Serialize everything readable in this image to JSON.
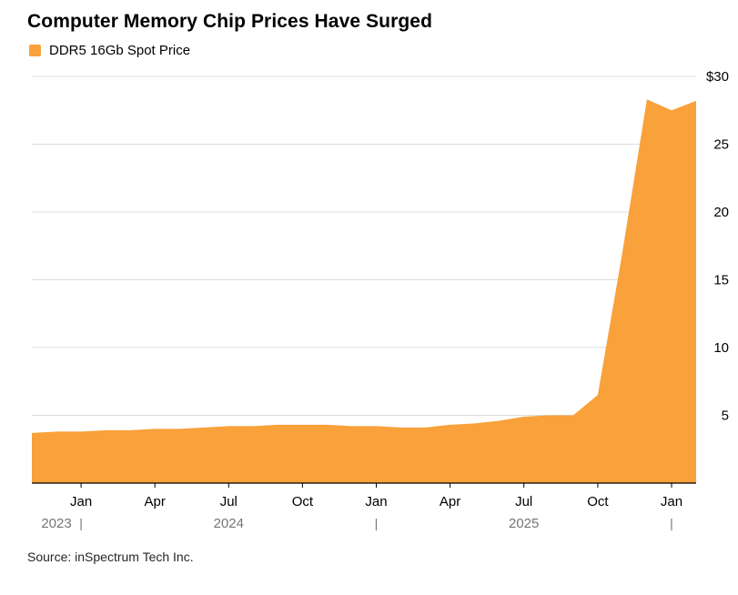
{
  "header": {
    "title": "Computer Memory Chip Prices Have Surged",
    "legend": {
      "label": "DDR5 16Gb Spot Price",
      "swatch_color": "#f9a13a"
    }
  },
  "footer": {
    "source": "Source: inSpectrum Tech Inc."
  },
  "chart_data": {
    "type": "area",
    "title": "Computer Memory Chip Prices Have Surged",
    "series_name": "DDR5 16Gb Spot Price",
    "color": "#f9a13a",
    "grid_color": "#dcdcdc",
    "axis_text_color": "#000000",
    "year_text_color": "#757575",
    "grid": true,
    "legend_position": "top-left",
    "y_axis_side": "right",
    "ylim": [
      0,
      30
    ],
    "y_ticks": [
      5,
      10,
      15,
      20,
      25,
      30
    ],
    "y_tick_labels": [
      "5",
      "10",
      "15",
      "20",
      "25",
      "$30"
    ],
    "x": [
      "2023-11",
      "2023-12",
      "2024-01",
      "2024-02",
      "2024-03",
      "2024-04",
      "2024-05",
      "2024-06",
      "2024-07",
      "2024-08",
      "2024-09",
      "2024-10",
      "2024-11",
      "2024-12",
      "2025-01",
      "2025-02",
      "2025-03",
      "2025-04",
      "2025-05",
      "2025-06",
      "2025-07",
      "2025-08",
      "2025-09",
      "2025-10",
      "2025-11",
      "2025-12",
      "2026-01",
      "2026-02"
    ],
    "values": [
      3.7,
      3.8,
      3.8,
      3.9,
      3.9,
      4.0,
      4.0,
      4.1,
      4.2,
      4.2,
      4.3,
      4.3,
      4.3,
      4.2,
      4.2,
      4.1,
      4.1,
      4.3,
      4.4,
      4.6,
      4.9,
      5.0,
      5.0,
      6.5,
      17.0,
      28.3,
      27.5,
      28.2
    ],
    "x_ticks": [
      {
        "index": 2,
        "label": "Jan"
      },
      {
        "index": 5,
        "label": "Apr"
      },
      {
        "index": 8,
        "label": "Jul"
      },
      {
        "index": 11,
        "label": "Oct"
      },
      {
        "index": 14,
        "label": "Jan"
      },
      {
        "index": 17,
        "label": "Apr"
      },
      {
        "index": 20,
        "label": "Jul"
      },
      {
        "index": 23,
        "label": "Oct"
      },
      {
        "index": 26,
        "label": "Jan"
      }
    ],
    "year_separators": [
      2,
      14,
      26
    ],
    "year_labels": [
      {
        "text": "2023",
        "from": 0,
        "to": 2
      },
      {
        "text": "2024",
        "from": 2,
        "to": 14
      },
      {
        "text": "2025",
        "from": 14,
        "to": 26
      }
    ]
  }
}
